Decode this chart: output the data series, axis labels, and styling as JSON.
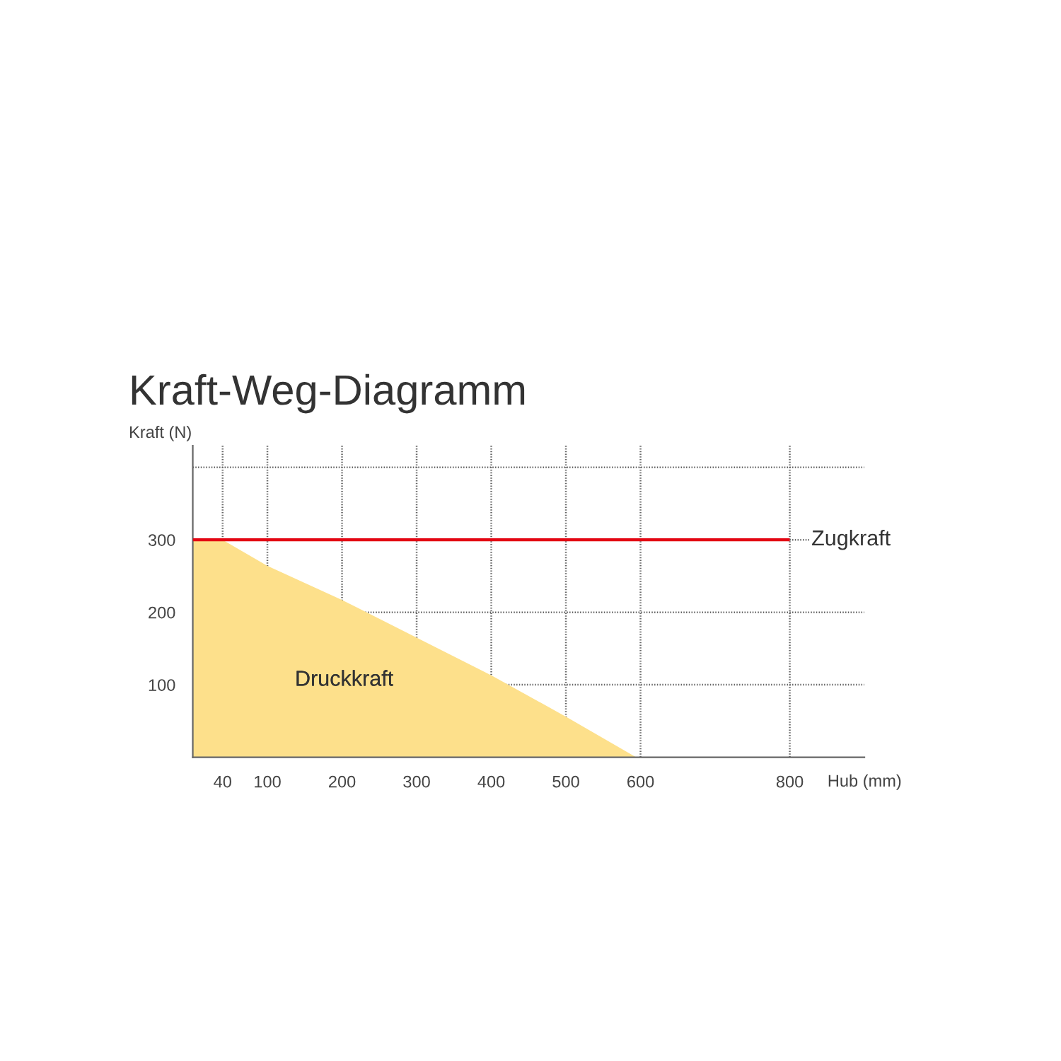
{
  "chart_data": {
    "type": "area",
    "title": "Kraft-Weg-Diagramm",
    "xlabel": "Hub (mm)",
    "ylabel": "Kraft (N)",
    "xlim": [
      0,
      900
    ],
    "xticks": [
      40,
      100,
      200,
      300,
      400,
      500,
      600,
      800
    ],
    "ylim": [
      0,
      430
    ],
    "yticks": [
      100,
      200,
      300,
      {
        "value": 400,
        "label": null
      }
    ],
    "grid": true,
    "legend": false,
    "series": [
      {
        "name": "Druckkraft",
        "color": "#fde08b",
        "x": [
          0,
          40,
          100,
          200,
          300,
          400,
          500,
          594
        ],
        "values": [
          300,
          300,
          264,
          217,
          165,
          113,
          56,
          0
        ]
      },
      {
        "name": "Zugkraft",
        "type": "line",
        "color": "#e30613",
        "x": [
          0,
          800
        ],
        "values": [
          300,
          300
        ]
      }
    ]
  }
}
